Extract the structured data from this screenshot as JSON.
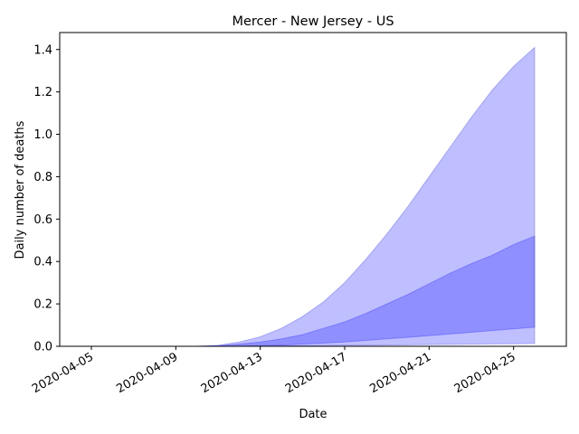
{
  "chart_data": {
    "type": "area",
    "title": "Mercer - New Jersey - US",
    "xlabel": "Date",
    "ylabel": "Daily number of deaths",
    "x_start": "2020-04-10",
    "x_end": "2020-04-26",
    "xlim": [
      "2020-04-03 12:00",
      "2020-04-27 12:00"
    ],
    "ylim": [
      0,
      1.48
    ],
    "x_ticks": [
      "2020-04-05",
      "2020-04-09",
      "2020-04-13",
      "2020-04-17",
      "2020-04-21",
      "2020-04-25"
    ],
    "y_ticks": [
      0.0,
      0.2,
      0.4,
      0.6,
      0.8,
      1.0,
      1.2,
      1.4
    ],
    "y_tick_labels": [
      "0.0",
      "0.2",
      "0.4",
      "0.6",
      "0.8",
      "1.0",
      "1.2",
      "1.4"
    ],
    "grid": false,
    "colors": {
      "band_fill": "#0000ff",
      "band_stroke": "#0000ff"
    },
    "series": [
      {
        "band": "outer",
        "x": [
          "2020-04-10",
          "2020-04-11",
          "2020-04-12",
          "2020-04-13",
          "2020-04-14",
          "2020-04-15",
          "2020-04-16",
          "2020-04-17",
          "2020-04-18",
          "2020-04-19",
          "2020-04-20",
          "2020-04-21",
          "2020-04-22",
          "2020-04-23",
          "2020-04-24",
          "2020-04-25",
          "2020-04-26"
        ],
        "low": [
          0,
          0,
          0,
          0,
          0.001,
          0.002,
          0.003,
          0.004,
          0.005,
          0.006,
          0.007,
          0.008,
          0.009,
          0.01,
          0.011,
          0.012,
          0.013
        ],
        "high": [
          0,
          0.005,
          0.02,
          0.045,
          0.085,
          0.14,
          0.21,
          0.3,
          0.41,
          0.53,
          0.66,
          0.8,
          0.94,
          1.08,
          1.21,
          1.32,
          1.41
        ]
      },
      {
        "band": "inner",
        "x": [
          "2020-04-10",
          "2020-04-11",
          "2020-04-12",
          "2020-04-13",
          "2020-04-14",
          "2020-04-15",
          "2020-04-16",
          "2020-04-17",
          "2020-04-18",
          "2020-04-19",
          "2020-04-20",
          "2020-04-21",
          "2020-04-22",
          "2020-04-23",
          "2020-04-24",
          "2020-04-25",
          "2020-04-26"
        ],
        "low": [
          0,
          0,
          0,
          0.002,
          0.005,
          0.01,
          0.015,
          0.02,
          0.028,
          0.035,
          0.042,
          0.05,
          0.058,
          0.066,
          0.074,
          0.082,
          0.09
        ],
        "high": [
          0,
          0.002,
          0.01,
          0.02,
          0.035,
          0.055,
          0.085,
          0.115,
          0.155,
          0.2,
          0.245,
          0.295,
          0.345,
          0.39,
          0.43,
          0.48,
          0.52
        ]
      }
    ]
  }
}
